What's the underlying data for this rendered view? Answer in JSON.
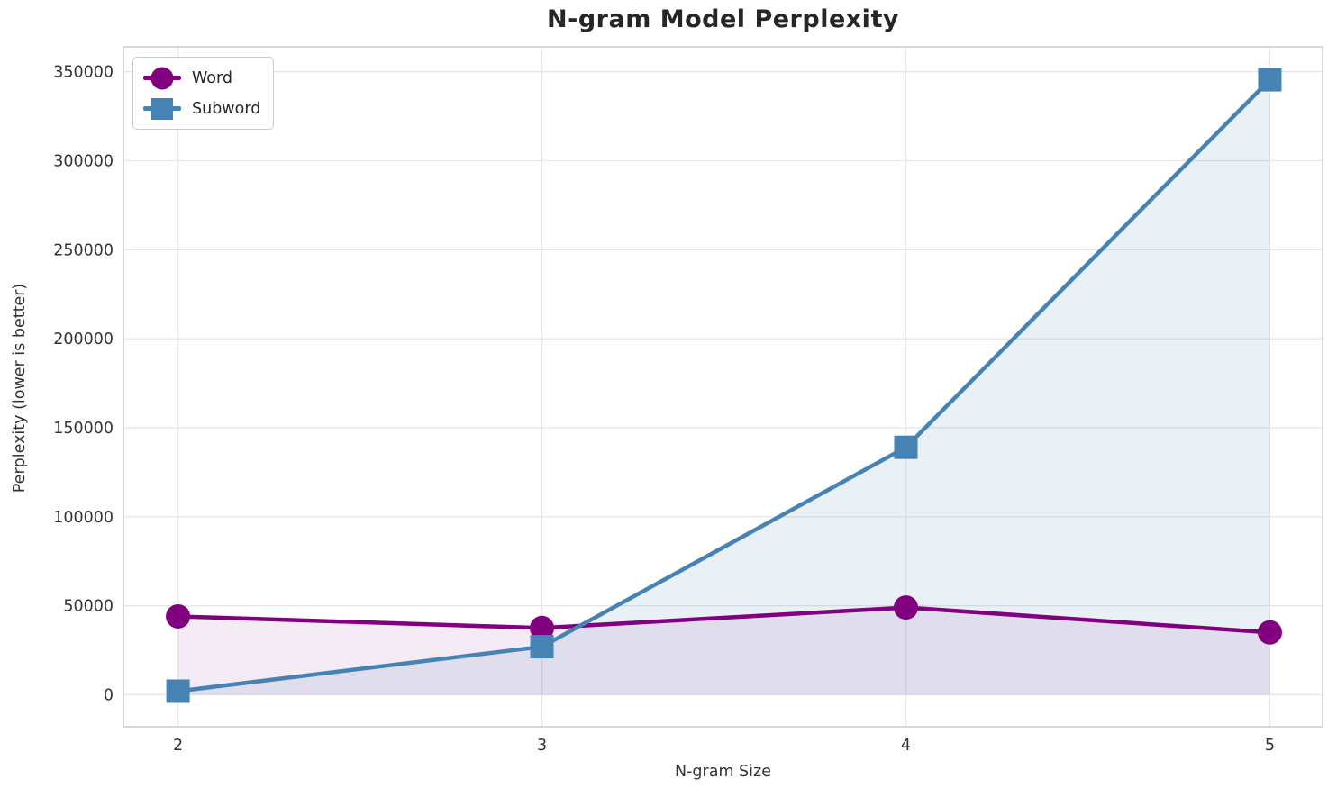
{
  "chart_data": {
    "type": "line",
    "title": "N-gram Model Perplexity",
    "xlabel": "N-gram Size",
    "ylabel": "Perplexity (lower is better)",
    "x": [
      2,
      3,
      4,
      5
    ],
    "series": [
      {
        "name": "Word",
        "marker": "circle",
        "color": "#800080",
        "fill_opacity": 0.08,
        "values": [
          44000,
          37500,
          49000,
          35000
        ]
      },
      {
        "name": "Subword",
        "marker": "square",
        "color": "#4682B4",
        "fill_opacity": 0.12,
        "values": [
          2000,
          27000,
          139000,
          345500
        ]
      }
    ],
    "xticks": [
      "2",
      "3",
      "4",
      "5"
    ],
    "yticks": [
      0,
      50000,
      100000,
      150000,
      200000,
      250000,
      300000,
      350000
    ],
    "xlim": [
      1.85,
      5.145
    ],
    "ylim": [
      -18000,
      364000
    ],
    "grid": true,
    "area_fill_to_zero": true,
    "legend_position": "upper left",
    "styles": {
      "grid_color": "#e6e6e6",
      "spine_color": "#cccccc",
      "tick_label_color": "#333333",
      "background": "#ffffff",
      "line_width": 4.5,
      "marker_size": 27
    }
  }
}
